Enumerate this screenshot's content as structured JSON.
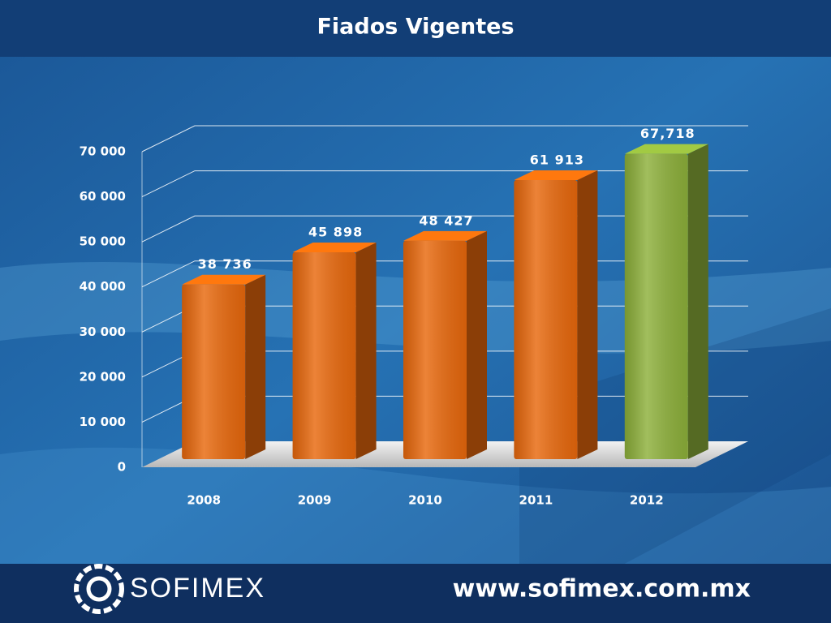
{
  "chart_data": {
    "type": "bar3d",
    "title": "Fiados Vigentes",
    "categories": [
      "2008",
      "2009",
      "2010",
      "2011",
      "2012"
    ],
    "values": [
      38736,
      45898,
      48427,
      61913,
      67718
    ],
    "value_labels": [
      "38 736",
      "45 898",
      "48 427",
      "61 913",
      "67,718"
    ],
    "colors": [
      "#e8680c",
      "#e8680c",
      "#e8680c",
      "#e8680c",
      "#8db03a"
    ],
    "ylim": [
      0,
      70000
    ],
    "yticks": [
      0,
      {
        "value": 10000,
        "label": "10 000"
      },
      {
        "value": 20000,
        "label": "20 000"
      },
      {
        "value": 30000,
        "label": "30 000"
      },
      {
        "value": 40000,
        "label": "40 000"
      },
      {
        "value": 50000,
        "label": "50 000"
      },
      {
        "value": 60000,
        "label": "60 000"
      },
      {
        "value": 70000,
        "label": "70 000"
      }
    ],
    "grid": true
  },
  "footer": {
    "brand": "SOFIMEX",
    "url": "www.sofimex.com.mx"
  }
}
